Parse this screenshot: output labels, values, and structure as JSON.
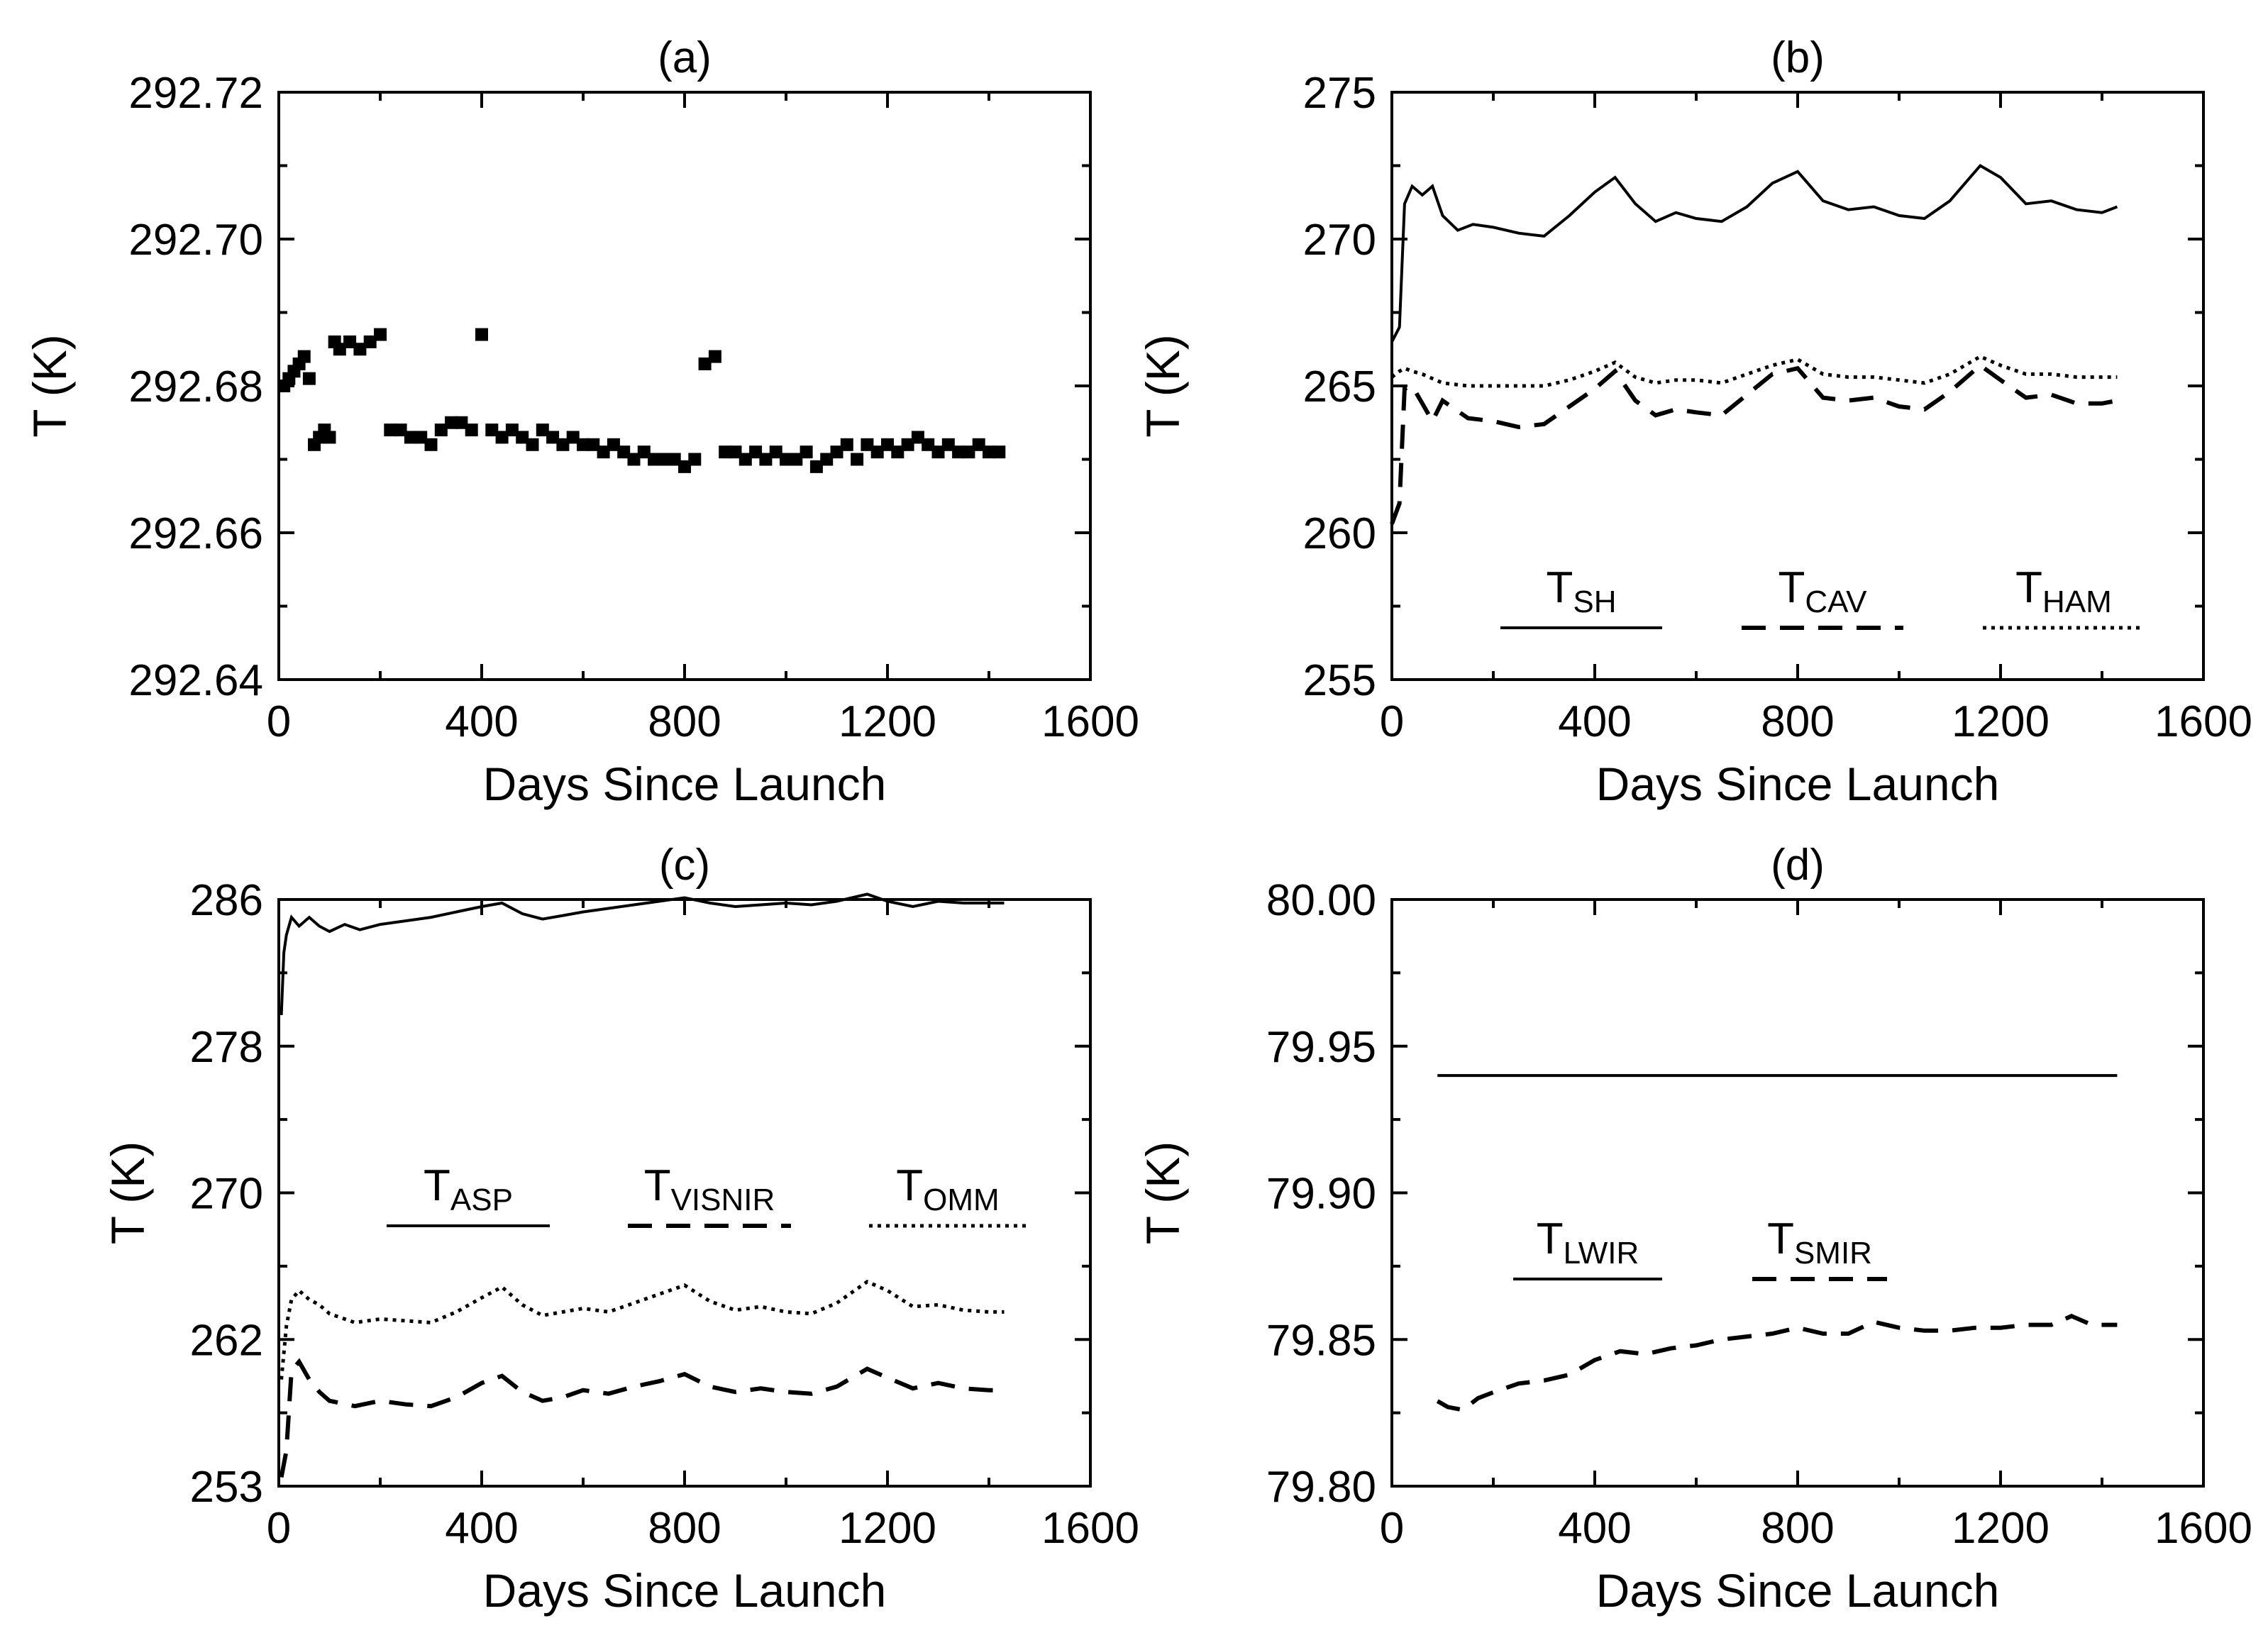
{
  "chart_data": [
    {
      "id": "a",
      "type": "scatter",
      "title": "(a)",
      "xlabel": "Days Since Launch",
      "ylabel": "T (K)",
      "xlim": [
        0,
        1600
      ],
      "ylim": [
        292.64,
        292.72
      ],
      "xticks": [
        "0",
        "400",
        "800",
        "1200",
        "1600"
      ],
      "yticks": [
        "292.64",
        "292.66",
        "292.68",
        "292.70",
        "292.72"
      ],
      "series": [
        {
          "name": "T",
          "style": "points",
          "x": [
            10,
            20,
            30,
            40,
            50,
            60,
            70,
            80,
            90,
            100,
            110,
            120,
            140,
            160,
            180,
            200,
            220,
            240,
            260,
            280,
            300,
            320,
            340,
            360,
            380,
            400,
            420,
            440,
            460,
            480,
            500,
            520,
            540,
            560,
            580,
            600,
            620,
            640,
            660,
            680,
            700,
            720,
            740,
            760,
            780,
            800,
            820,
            840,
            860,
            880,
            900,
            920,
            940,
            960,
            980,
            1000,
            1020,
            1040,
            1060,
            1080,
            1100,
            1120,
            1140,
            1160,
            1180,
            1200,
            1220,
            1240,
            1260,
            1280,
            1300,
            1320,
            1340,
            1360,
            1380,
            1400,
            1420
          ],
          "y": [
            292.68,
            292.681,
            292.682,
            292.683,
            292.684,
            292.681,
            292.672,
            292.673,
            292.674,
            292.673,
            292.686,
            292.685,
            292.686,
            292.685,
            292.686,
            292.687,
            292.674,
            292.674,
            292.673,
            292.673,
            292.672,
            292.674,
            292.675,
            292.675,
            292.674,
            292.687,
            292.674,
            292.673,
            292.674,
            292.673,
            292.672,
            292.674,
            292.673,
            292.672,
            292.673,
            292.672,
            292.672,
            292.671,
            292.672,
            292.671,
            292.67,
            292.671,
            292.67,
            292.67,
            292.67,
            292.669,
            292.67,
            292.683,
            292.684,
            292.671,
            292.671,
            292.67,
            292.671,
            292.67,
            292.671,
            292.67,
            292.67,
            292.671,
            292.669,
            292.67,
            292.671,
            292.672,
            292.67,
            292.672,
            292.671,
            292.672,
            292.671,
            292.672,
            292.673,
            292.672,
            292.671,
            292.672,
            292.671,
            292.671,
            292.672,
            292.671,
            292.671
          ]
        }
      ],
      "legend": []
    },
    {
      "id": "b",
      "type": "line",
      "title": "(b)",
      "xlabel": "Days Since Launch",
      "ylabel": "T (K)",
      "xlim": [
        0,
        1600
      ],
      "ylim": [
        255,
        275
      ],
      "xticks": [
        "0",
        "400",
        "800",
        "1200",
        "1600"
      ],
      "yticks": [
        "255",
        "260",
        "265",
        "270",
        "275"
      ],
      "series": [
        {
          "name": "T_SH",
          "style": "solid",
          "x": [
            0,
            15,
            25,
            40,
            60,
            80,
            100,
            130,
            160,
            200,
            250,
            300,
            350,
            400,
            440,
            480,
            520,
            560,
            600,
            650,
            700,
            750,
            800,
            850,
            900,
            950,
            1000,
            1050,
            1100,
            1160,
            1200,
            1250,
            1300,
            1350,
            1400,
            1430
          ],
          "y": [
            266.5,
            267.0,
            271.2,
            271.8,
            271.5,
            271.8,
            270.8,
            270.3,
            270.5,
            270.4,
            270.2,
            270.1,
            270.8,
            271.6,
            272.1,
            271.2,
            270.6,
            270.9,
            270.7,
            270.6,
            271.1,
            271.9,
            272.3,
            271.3,
            271.0,
            271.1,
            270.8,
            270.7,
            271.3,
            272.5,
            272.1,
            271.2,
            271.3,
            271.0,
            270.9,
            271.1
          ]
        },
        {
          "name": "T_CAV",
          "style": "dashed",
          "x": [
            0,
            15,
            25,
            40,
            60,
            80,
            100,
            150,
            200,
            250,
            300,
            350,
            400,
            440,
            480,
            520,
            560,
            600,
            650,
            700,
            750,
            800,
            850,
            900,
            950,
            1000,
            1050,
            1100,
            1160,
            1200,
            1250,
            1300,
            1350,
            1400,
            1430
          ],
          "y": [
            260.3,
            261.0,
            264.9,
            265.0,
            264.4,
            263.8,
            264.5,
            263.9,
            263.8,
            263.6,
            263.7,
            264.3,
            264.9,
            265.5,
            264.5,
            264.0,
            264.2,
            264.1,
            264.0,
            264.7,
            265.4,
            265.6,
            264.6,
            264.5,
            264.6,
            264.3,
            264.2,
            264.8,
            265.7,
            265.2,
            264.6,
            264.7,
            264.4,
            264.4,
            264.5
          ]
        },
        {
          "name": "T_HAM",
          "style": "dotted",
          "x": [
            0,
            15,
            25,
            40,
            60,
            100,
            150,
            200,
            250,
            300,
            350,
            400,
            440,
            480,
            520,
            560,
            600,
            650,
            700,
            750,
            800,
            850,
            900,
            950,
            1000,
            1050,
            1100,
            1160,
            1200,
            1250,
            1300,
            1350,
            1400,
            1430
          ],
          "y": [
            265.3,
            265.5,
            265.6,
            265.5,
            265.4,
            265.1,
            265.0,
            265.0,
            265.0,
            265.0,
            265.2,
            265.5,
            265.8,
            265.3,
            265.1,
            265.2,
            265.2,
            265.1,
            265.4,
            265.7,
            265.9,
            265.4,
            265.3,
            265.3,
            265.2,
            265.1,
            265.4,
            266.0,
            265.7,
            265.4,
            265.4,
            265.3,
            265.3,
            265.3
          ]
        }
      ],
      "legend": [
        {
          "main": "T",
          "sub": "SH",
          "style": "solid"
        },
        {
          "main": "T",
          "sub": "CAV",
          "style": "dashed"
        },
        {
          "main": "T",
          "sub": "HAM",
          "style": "dotted"
        }
      ]
    },
    {
      "id": "c",
      "type": "line",
      "title": "(c)",
      "xlabel": "Days Since Launch",
      "ylabel": "T (K)",
      "xlim": [
        0,
        1600
      ],
      "ylim": [
        253,
        286
      ],
      "xticks": [
        "0",
        "400",
        "800",
        "1200",
        "1600"
      ],
      "yticks": [
        "253",
        "262",
        "270",
        "278",
        "286"
      ],
      "series": [
        {
          "name": "T_ASP",
          "style": "solid",
          "x": [
            5,
            10,
            15,
            25,
            40,
            60,
            80,
            100,
            130,
            160,
            200,
            250,
            300,
            350,
            400,
            440,
            480,
            520,
            560,
            600,
            650,
            700,
            750,
            800,
            850,
            900,
            950,
            1000,
            1050,
            1100,
            1160,
            1200,
            1250,
            1300,
            1350,
            1400,
            1430
          ],
          "y": [
            279.5,
            283.0,
            284.0,
            285.0,
            284.5,
            285.0,
            284.5,
            284.2,
            284.6,
            284.3,
            284.6,
            284.8,
            285.0,
            285.3,
            285.6,
            285.8,
            285.2,
            284.9,
            285.1,
            285.3,
            285.5,
            285.7,
            285.9,
            286.1,
            285.8,
            285.6,
            285.7,
            285.8,
            285.7,
            285.9,
            286.3,
            285.9,
            285.6,
            285.9,
            285.8,
            285.8,
            285.8
          ]
        },
        {
          "name": "T_VISNIR",
          "style": "dashed",
          "x": [
            5,
            15,
            25,
            40,
            60,
            80,
            100,
            150,
            200,
            250,
            300,
            350,
            400,
            440,
            480,
            520,
            560,
            600,
            650,
            700,
            750,
            800,
            850,
            900,
            950,
            1000,
            1050,
            1100,
            1160,
            1200,
            1250,
            1300,
            1350,
            1400,
            1430
          ],
          "y": [
            253.5,
            255.0,
            259.5,
            260.0,
            259.0,
            258.3,
            257.8,
            257.5,
            257.8,
            257.6,
            257.5,
            258.0,
            258.8,
            259.2,
            258.3,
            257.8,
            258.0,
            258.4,
            258.2,
            258.6,
            258.9,
            259.3,
            258.6,
            258.3,
            258.5,
            258.3,
            258.2,
            258.6,
            259.6,
            259.1,
            258.5,
            258.8,
            258.5,
            258.4,
            258.4
          ]
        },
        {
          "name": "T_OMM",
          "style": "dotted",
          "x": [
            5,
            15,
            25,
            40,
            60,
            80,
            100,
            150,
            200,
            250,
            300,
            350,
            400,
            440,
            480,
            520,
            560,
            600,
            650,
            700,
            750,
            800,
            850,
            900,
            950,
            1000,
            1050,
            1100,
            1160,
            1200,
            1250,
            1300,
            1350,
            1400,
            1430
          ],
          "y": [
            259.0,
            262.0,
            263.5,
            264.0,
            263.5,
            263.2,
            262.7,
            262.2,
            262.4,
            262.3,
            262.2,
            262.8,
            263.6,
            264.2,
            263.2,
            262.6,
            262.8,
            263.0,
            262.8,
            263.3,
            263.8,
            264.3,
            263.4,
            262.9,
            263.1,
            262.8,
            262.7,
            263.3,
            264.5,
            264.0,
            263.1,
            263.2,
            262.9,
            262.8,
            262.8
          ]
        }
      ],
      "legend": [
        {
          "main": "T",
          "sub": "ASP",
          "style": "solid"
        },
        {
          "main": "T",
          "sub": "VISNIR",
          "style": "dashed"
        },
        {
          "main": "T",
          "sub": "OMM",
          "style": "dotted"
        }
      ]
    },
    {
      "id": "d",
      "type": "line",
      "title": "(d)",
      "xlabel": "Days Since Launch",
      "ylabel": "T (K)",
      "xlim": [
        0,
        1600
      ],
      "ylim": [
        79.8,
        80.0
      ],
      "xticks": [
        "0",
        "400",
        "800",
        "1200",
        "1600"
      ],
      "yticks": [
        "79.80",
        "79.85",
        "79.90",
        "79.95",
        "80.00"
      ],
      "series": [
        {
          "name": "T_LWIR",
          "style": "solid",
          "x": [
            90,
            1430
          ],
          "y": [
            79.94,
            79.94
          ]
        },
        {
          "name": "T_SMIR",
          "style": "dashed",
          "x": [
            90,
            110,
            140,
            170,
            200,
            250,
            300,
            350,
            400,
            450,
            500,
            550,
            600,
            650,
            700,
            750,
            800,
            850,
            900,
            950,
            1000,
            1050,
            1100,
            1150,
            1200,
            1250,
            1300,
            1340,
            1380,
            1430
          ],
          "y": [
            79.829,
            79.827,
            79.826,
            79.83,
            79.832,
            79.835,
            79.836,
            79.838,
            79.843,
            79.846,
            79.845,
            79.847,
            79.848,
            79.85,
            79.851,
            79.852,
            79.854,
            79.852,
            79.852,
            79.856,
            79.854,
            79.853,
            79.853,
            79.854,
            79.854,
            79.855,
            79.855,
            79.858,
            79.855,
            79.855
          ]
        }
      ],
      "legend": [
        {
          "main": "T",
          "sub": "LWIR",
          "style": "solid"
        },
        {
          "main": "T",
          "sub": "SMIR",
          "style": "dashed"
        }
      ]
    }
  ]
}
